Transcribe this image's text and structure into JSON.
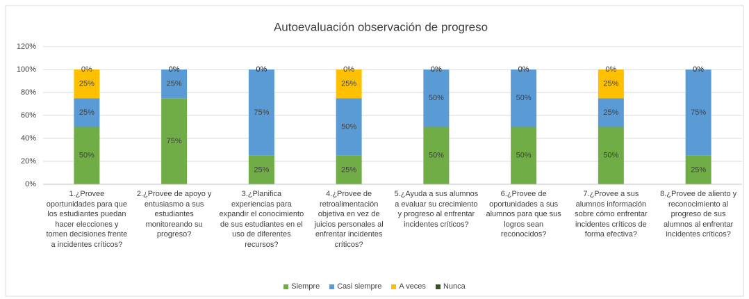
{
  "chart_data": {
    "type": "stacked_bar",
    "title": "Autoevaluación observación de progreso",
    "categories": [
      "1.¿Provee oportunidades para que los estudiantes puedan hacer elecciones y tomen decisiones frente a incidentes críticos?",
      "2.¿Provee de apoyo y entusiasmo a sus estudiantes monitoreando su progreso?",
      "3.¿Planifica experiencias para expandir el conocimiento de sus estudiantes en el uso de diferentes recursos?",
      "4.¿Provee de retroalimentación objetiva en vez de juicios personales al enfrentar incidentes críticos?",
      "5.¿Ayuda a sus alumnos a evaluar su crecimiento y progreso al enfrentar incidentes críticos?",
      "6.¿Provee de oportunidades a sus alumnos para que sus logros sean reconocidos?",
      "7.¿Provee a sus alumnos información sobre cómo enfrentar incidentes críticos de forma efectiva?",
      "8.¿Provee de aliento y reconocimiento al progreso de sus alumnos al enfrentar incidentes críticos?"
    ],
    "series": [
      {
        "name": "Siempre",
        "color": "#70ad47",
        "values": [
          50,
          75,
          25,
          25,
          50,
          50,
          50,
          25
        ],
        "value_labels": [
          "50%",
          "75%",
          "25%",
          "25%",
          "50%",
          "50%",
          "50%",
          "25%"
        ]
      },
      {
        "name": "Casi siempre",
        "color": "#5b9bd5",
        "values": [
          25,
          25,
          75,
          50,
          50,
          50,
          25,
          75
        ],
        "value_labels": [
          "25%",
          "25%",
          "75%",
          "50%",
          "50%",
          "50%",
          "25%",
          "75%"
        ]
      },
      {
        "name": "A veces",
        "color": "#ffc000",
        "values": [
          25,
          0,
          0,
          25,
          0,
          0,
          25,
          0
        ],
        "value_labels": [
          "25%",
          "0%",
          "0%",
          "25%",
          "0%",
          "0%",
          "25%",
          "0%"
        ]
      },
      {
        "name": "Nunca",
        "color": "#375623",
        "values": [
          0,
          0,
          0,
          0,
          0,
          0,
          0,
          0
        ],
        "value_labels": [
          "0%",
          "0%",
          "0%",
          "0%",
          "0%",
          "0%",
          "0%",
          "0%"
        ]
      }
    ],
    "ylim": [
      0,
      120
    ],
    "yticks": [
      {
        "value": 0,
        "label": "0%"
      },
      {
        "value": 20,
        "label": "20%"
      },
      {
        "value": 40,
        "label": "40%"
      },
      {
        "value": 60,
        "label": "60%"
      },
      {
        "value": 80,
        "label": "80%"
      },
      {
        "value": 100,
        "label": "100%"
      },
      {
        "value": 120,
        "label": "120%"
      }
    ],
    "grid": true,
    "legend": "bottom"
  }
}
